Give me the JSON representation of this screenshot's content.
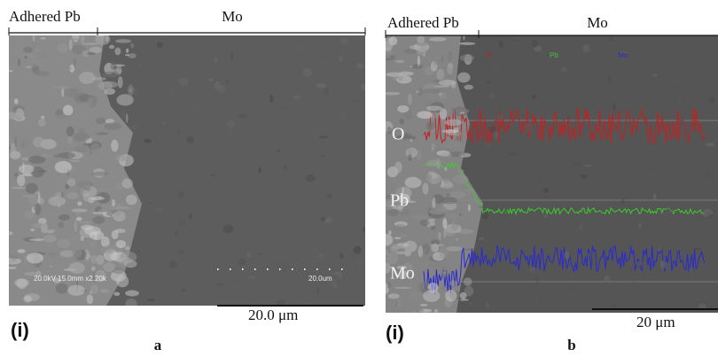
{
  "figure": {
    "panels": [
      {
        "region_labels": [
          "Adhered Pb",
          "Mo"
        ],
        "microscope_info": "20.0kV 15.0mm x2.20k",
        "inset_scale": "20.0um",
        "scale_label": "20.0 μm",
        "sub_label": "(i)",
        "caption": "a"
      },
      {
        "region_labels": [
          "Adhered Pb",
          "Mo"
        ],
        "legend": [
          "O",
          "Pb",
          "Mo"
        ],
        "trace_labels": [
          "O",
          "Pb",
          "Mo"
        ],
        "scale_label": "20 μm",
        "sub_label": "(i)",
        "caption": "b"
      }
    ]
  }
}
